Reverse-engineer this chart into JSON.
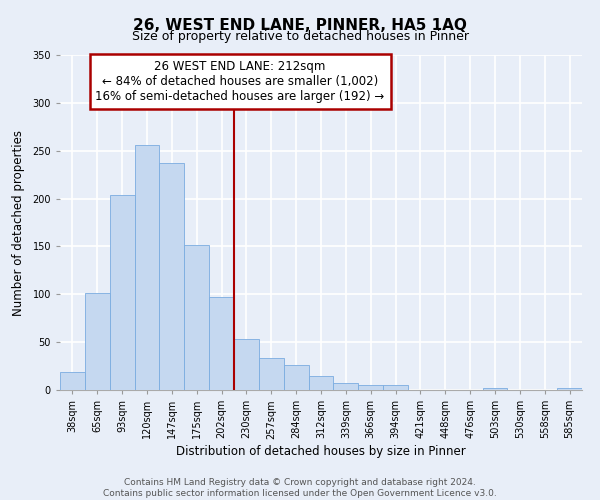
{
  "title": "26, WEST END LANE, PINNER, HA5 1AQ",
  "subtitle": "Size of property relative to detached houses in Pinner",
  "xlabel": "Distribution of detached houses by size in Pinner",
  "ylabel": "Number of detached properties",
  "categories": [
    "38sqm",
    "65sqm",
    "93sqm",
    "120sqm",
    "147sqm",
    "175sqm",
    "202sqm",
    "230sqm",
    "257sqm",
    "284sqm",
    "312sqm",
    "339sqm",
    "366sqm",
    "394sqm",
    "421sqm",
    "448sqm",
    "476sqm",
    "503sqm",
    "530sqm",
    "558sqm",
    "585sqm"
  ],
  "values": [
    19,
    101,
    204,
    256,
    237,
    151,
    97,
    53,
    33,
    26,
    15,
    7,
    5,
    5,
    0,
    0,
    0,
    2,
    0,
    0,
    2
  ],
  "bar_color": "#c5d8f0",
  "bar_edge_color": "#7aace0",
  "vline_x": 6.5,
  "vline_color": "#aa0000",
  "annotation_line1": "26 WEST END LANE: 212sqm",
  "annotation_line2": "← 84% of detached houses are smaller (1,002)",
  "annotation_line3": "16% of semi-detached houses are larger (192) →",
  "annotation_box_color": "#ffffff",
  "annotation_box_edge": "#aa0000",
  "ylim": [
    0,
    350
  ],
  "yticks": [
    0,
    50,
    100,
    150,
    200,
    250,
    300,
    350
  ],
  "footer_line1": "Contains HM Land Registry data © Crown copyright and database right 2024.",
  "footer_line2": "Contains public sector information licensed under the Open Government Licence v3.0.",
  "bg_color": "#e8eef8",
  "grid_color": "#ffffff",
  "title_fontsize": 11,
  "subtitle_fontsize": 9,
  "axis_label_fontsize": 8.5,
  "tick_fontsize": 7,
  "footer_fontsize": 6.5,
  "annotation_fontsize": 8.5
}
